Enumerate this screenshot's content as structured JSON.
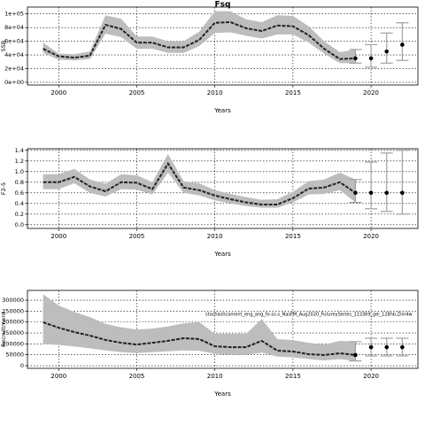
{
  "chart_data": [
    {
      "type": "band-line",
      "title": "Fsq",
      "xlabel": "Years",
      "ylabel": "SSB",
      "x": [
        1999,
        2000,
        2001,
        2002,
        2003,
        2004,
        2005,
        2006,
        2007,
        2008,
        2009,
        2010,
        2011,
        2012,
        2013,
        2014,
        2015,
        2016,
        2017,
        2018,
        2019
      ],
      "values": [
        49000,
        38000,
        36000,
        39000,
        84000,
        78000,
        58000,
        58000,
        51000,
        51000,
        62000,
        87000,
        88000,
        79000,
        75000,
        83000,
        82000,
        69000,
        49000,
        34000,
        35000
      ],
      "upper": [
        58000,
        42000,
        41000,
        45000,
        98000,
        93000,
        67000,
        67000,
        60000,
        60000,
        74000,
        104000,
        104000,
        92000,
        88000,
        98000,
        97000,
        82000,
        60000,
        44000,
        48000
      ],
      "lower": [
        43000,
        33000,
        32000,
        34000,
        71000,
        66000,
        49000,
        49000,
        43000,
        43000,
        53000,
        72000,
        73000,
        68000,
        64000,
        70000,
        70000,
        58000,
        42000,
        28000,
        28000
      ],
      "projection": {
        "x": [
          2019,
          2020,
          2021,
          2022
        ],
        "values": [
          35000,
          35000,
          45000,
          55000
        ],
        "lower": [
          28000,
          22000,
          28000,
          32000
        ],
        "upper": [
          48000,
          55000,
          72000,
          87000
        ]
      },
      "band_color": "#bdbdbd",
      "line_color": "#222222",
      "error_color": "#a0a0a0",
      "grid": true,
      "xlim": [
        1998,
        2023
      ],
      "xticks": [
        2000,
        2005,
        2010,
        2015,
        2020
      ],
      "ylim": [
        -4000,
        110000
      ],
      "yticks": [
        {
          "value": 0,
          "label": "0e+00"
        },
        {
          "value": 20000,
          "label": "2e+04"
        },
        {
          "value": 40000,
          "label": "4e+04"
        },
        {
          "value": 60000,
          "label": "6e+04"
        },
        {
          "value": 80000,
          "label": "8e+04"
        },
        {
          "value": 100000,
          "label": "1e+05"
        }
      ]
    },
    {
      "type": "band-line",
      "xlabel": "Years",
      "ylabel": "F2-5",
      "x": [
        1999,
        2000,
        2001,
        2002,
        2003,
        2004,
        2005,
        2006,
        2007,
        2008,
        2009,
        2010,
        2011,
        2012,
        2013,
        2014,
        2015,
        2016,
        2017,
        2018,
        2019
      ],
      "values": [
        0.8,
        0.8,
        0.9,
        0.72,
        0.63,
        0.8,
        0.79,
        0.67,
        1.15,
        0.7,
        0.65,
        0.55,
        0.48,
        0.42,
        0.38,
        0.38,
        0.5,
        0.68,
        0.7,
        0.8,
        0.6
      ],
      "upper": [
        0.95,
        0.95,
        1.05,
        0.85,
        0.77,
        0.95,
        0.93,
        0.8,
        1.33,
        0.82,
        0.78,
        0.65,
        0.58,
        0.52,
        0.47,
        0.48,
        0.62,
        0.82,
        0.85,
        0.98,
        0.85
      ],
      "lower": [
        0.67,
        0.67,
        0.78,
        0.6,
        0.53,
        0.67,
        0.66,
        0.57,
        0.98,
        0.6,
        0.55,
        0.46,
        0.4,
        0.35,
        0.32,
        0.32,
        0.42,
        0.57,
        0.58,
        0.65,
        0.42
      ],
      "projection": {
        "x": [
          2019,
          2020,
          2021,
          2022
        ],
        "values": [
          0.6,
          0.6,
          0.6,
          0.6
        ],
        "lower": [
          0.42,
          0.3,
          0.25,
          0.2
        ],
        "upper": [
          0.85,
          1.18,
          1.35,
          1.4
        ]
      },
      "band_color": "#bdbdbd",
      "line_color": "#222222",
      "error_color": "#a0a0a0",
      "grid": true,
      "xlim": [
        1998,
        2023
      ],
      "xticks": [
        2000,
        2005,
        2010,
        2015,
        2020
      ],
      "ylim": [
        -0.07,
        1.43
      ],
      "yticks": [
        {
          "value": 0,
          "label": "0.0"
        },
        0.2,
        0.4,
        0.6,
        0.8,
        {
          "value": 1,
          "label": "1.0"
        },
        1.2,
        1.4
      ]
    },
    {
      "type": "band-line",
      "xlabel": "Years",
      "ylabel": "Recruitment",
      "annotation": "stochasticament_eng_ang_fo-ss-s_NasFM_Aug2020_FutureySeries_113369_gei_128hb.Zlm4w",
      "x": [
        1999,
        2000,
        2001,
        2002,
        2003,
        2004,
        2005,
        2006,
        2007,
        2008,
        2009,
        2010,
        2011,
        2012,
        2013,
        2014,
        2015,
        2016,
        2017,
        2018,
        2019
      ],
      "values": [
        199000,
        174000,
        154000,
        138000,
        118000,
        105000,
        97000,
        105000,
        114000,
        126000,
        122000,
        89000,
        85000,
        85000,
        114000,
        69000,
        65000,
        53000,
        49000,
        57000,
        49000
      ],
      "upper": [
        328000,
        276000,
        246000,
        223000,
        192000,
        176000,
        166000,
        170000,
        180000,
        194000,
        200000,
        146000,
        146000,
        146000,
        214000,
        122000,
        118000,
        105000,
        97000,
        114000,
        110000
      ],
      "lower": [
        100000,
        95000,
        88000,
        80000,
        70000,
        62000,
        58000,
        62000,
        66000,
        70000,
        68000,
        55000,
        50000,
        50000,
        60000,
        42000,
        38000,
        30000,
        24000,
        30000,
        22000
      ],
      "projection": {
        "x": [
          2019,
          2020,
          2021,
          2022
        ],
        "values": [
          49000,
          85000,
          85000,
          85000
        ],
        "lower": [
          22000,
          45000,
          45000,
          45000
        ],
        "upper": [
          110000,
          126000,
          126000,
          126000
        ]
      },
      "band_color": "#bdbdbd",
      "line_color": "#222222",
      "error_color": "#a0a0a0",
      "grid": true,
      "xlim": [
        1998,
        2023
      ],
      "xticks": [
        2000,
        2005,
        2010,
        2015,
        2020
      ],
      "ylim": [
        -12000,
        345000
      ],
      "yticks": [
        0,
        50000,
        100000,
        150000,
        200000,
        250000,
        300000
      ]
    }
  ]
}
